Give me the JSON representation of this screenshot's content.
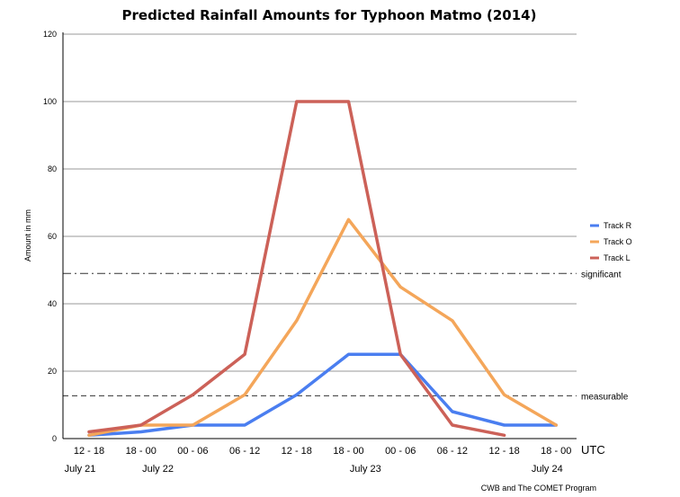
{
  "chart_data": {
    "type": "line",
    "title": "Predicted Rainfall Amounts for Typhoon Matmo (2014)",
    "ylabel": "Amount in mm",
    "xunit": "UTC",
    "ylim": [
      0,
      120
    ],
    "yticks": [
      0,
      20,
      40,
      60,
      80,
      100,
      120
    ],
    "grid": true,
    "legend_position": "right",
    "categories": [
      "12 - 18",
      "18 - 00",
      "00 - 06",
      "06 - 12",
      "12 - 18",
      "18 - 00",
      "00 - 06",
      "06 - 12",
      "12 - 18",
      "18 - 00"
    ],
    "date_labels": [
      {
        "label": "July 21",
        "index": 0
      },
      {
        "label": "July 22",
        "index": 1.5
      },
      {
        "label": "July 23",
        "index": 5.5
      },
      {
        "label": "July 24",
        "index": 9
      }
    ],
    "series": [
      {
        "name": "Track R",
        "color": "#4a7ef0",
        "values": [
          1,
          2,
          4,
          4,
          13,
          25,
          25,
          8,
          4,
          4
        ]
      },
      {
        "name": "Track O",
        "color": "#f4a65a",
        "values": [
          1,
          4,
          4,
          13,
          35,
          65,
          45,
          35,
          13,
          4
        ]
      },
      {
        "name": "Track L",
        "color": "#cc6158",
        "values": [
          2,
          4,
          13,
          25,
          100,
          100,
          25,
          4,
          1,
          null
        ]
      }
    ],
    "reference_lines": [
      {
        "label": "significant",
        "value": 49,
        "style": "dashdot"
      },
      {
        "label": "measurable",
        "value": 12.7,
        "style": "dashed"
      }
    ],
    "credit": "CWB and The COMET Program"
  }
}
